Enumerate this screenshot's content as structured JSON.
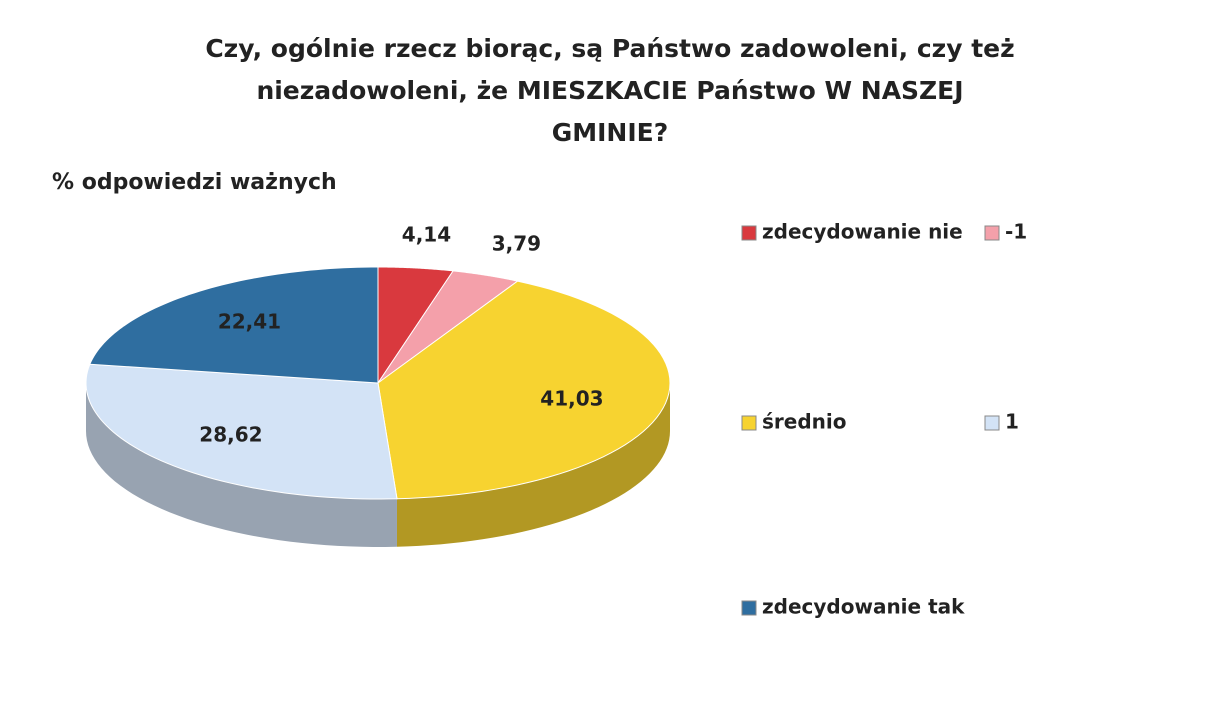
{
  "chart_data": {
    "type": "pie",
    "title": "Czy, ogólnie rzecz biorąc, są Państwo zadowoleni, czy też niezadowoleni, że MIESZKACIE Państwo W NASZEJ GMINIE?",
    "subtitle": "% odpowiedzi ważnych",
    "categories": [
      "zdecydowanie nie",
      "-1",
      "średnio",
      "1",
      "zdecydowanie tak"
    ],
    "values": [
      4.14,
      3.79,
      41.03,
      28.62,
      22.41
    ],
    "value_labels": [
      "4,14",
      "3,79",
      "41,03",
      "28,62",
      "22,41"
    ],
    "colors": [
      "#d9393e",
      "#f4a0aa",
      "#f7d330",
      "#d3e3f6",
      "#2f6ea0"
    ],
    "legend": "right"
  }
}
